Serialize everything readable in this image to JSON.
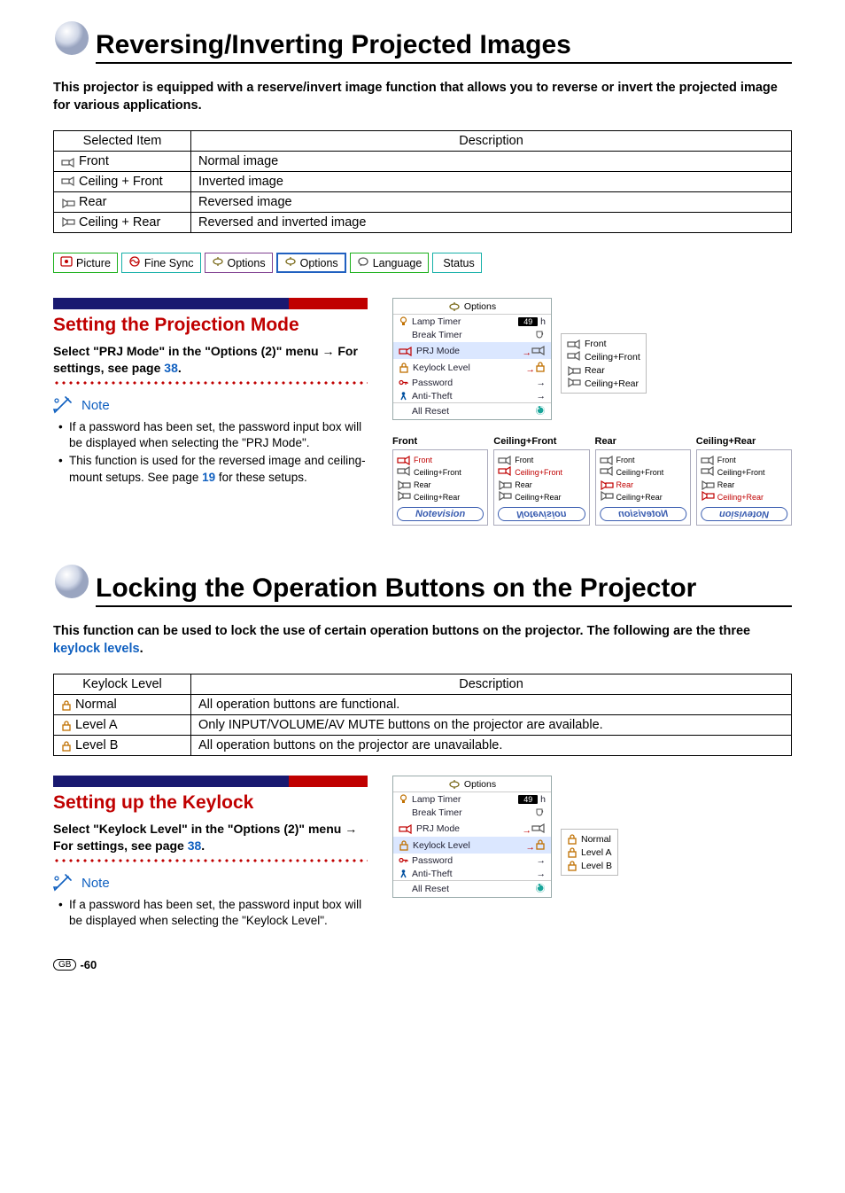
{
  "section1": {
    "title": "Reversing/Inverting Projected Images",
    "intro": "This projector is equipped with a reserve/invert image function that allows you to reverse or invert the projected image for various applications.",
    "table": {
      "headers": [
        "Selected Item",
        "Description"
      ],
      "rows": [
        {
          "item": "Front",
          "desc": "Normal image",
          "iconColor": "#555"
        },
        {
          "item": "Ceiling + Front",
          "desc": "Inverted image",
          "iconColor": "#555"
        },
        {
          "item": "Rear",
          "desc": "Reversed image",
          "iconColor": "#555"
        },
        {
          "item": "Ceiling + Rear",
          "desc": "Reversed and inverted image",
          "iconColor": "#555"
        }
      ],
      "col1_width": 155
    }
  },
  "menuTabs": [
    {
      "label": "Picture",
      "border": "#1bb01b",
      "iconColor": "#c00000"
    },
    {
      "label": "Fine Sync",
      "border": "#16b0a8",
      "iconColor": "#c00000"
    },
    {
      "label": "Options",
      "border": "#804090",
      "iconColor": "#7a6a1a"
    },
    {
      "label": "Options",
      "border": "#2060c0",
      "iconColor": "#7a6a1a",
      "thick": true
    },
    {
      "label": "Language",
      "border": "#1bb01b",
      "iconColor": "#555"
    },
    {
      "label": "Status",
      "border": "#16b0a8",
      "iconColor": null
    }
  ],
  "sub1": {
    "title": "Setting the Projection Mode",
    "leadA": "Select \"PRJ Mode\" in the \"Options (2)\" menu ",
    "leadArrow": "→",
    "leadB": " For settings, see page ",
    "pageRef": "38",
    "leadC": ".",
    "noteLabel": "Note",
    "notes": [
      {
        "text": "If a password has been set, the password input box will be displayed when selecting the \"PRJ Mode\"."
      },
      {
        "text": "This function is used for the reversed image and ceiling-mount setups. See page ",
        "page": "19",
        "tail": " for these setups."
      }
    ]
  },
  "optionsPanel": {
    "title": "Options",
    "rows": [
      {
        "icon": "lamp",
        "label": "Lamp Timer",
        "val": "49",
        "unit": "h",
        "color": "#c07000"
      },
      {
        "icon": "",
        "label": "Break Timer",
        "rtype": "cup"
      },
      {
        "icon": "prj",
        "label": "PRJ Mode",
        "rtype": "prjarrow",
        "hiA": true,
        "color": "#c00000"
      },
      {
        "icon": "lock",
        "label": "Keylock Level",
        "rtype": "lockarrow",
        "hiB": true,
        "color": "#c07000"
      },
      {
        "icon": "key",
        "label": "Password",
        "rtype": "arrow",
        "color": "#c00000"
      },
      {
        "icon": "thief",
        "label": "Anti-Theft",
        "rtype": "arrow",
        "color": "#0050a0"
      },
      {
        "icon": "",
        "label": "All Reset",
        "rtype": "reset",
        "last": true
      }
    ]
  },
  "prjPopup": [
    "Front",
    "Ceiling+Front",
    "Rear",
    "Ceiling+Rear"
  ],
  "modeGrid": [
    {
      "h": "Front",
      "sel": 0,
      "cls": ""
    },
    {
      "h": "Ceiling+Front",
      "sel": 1,
      "cls": "ud"
    },
    {
      "h": "Rear",
      "sel": 2,
      "cls": "flip"
    },
    {
      "h": "Ceiling+Rear",
      "sel": 3,
      "cls": "ud flip"
    }
  ],
  "modeItems": [
    "Front",
    "Ceiling+Front",
    "Rear",
    "Ceiling+Rear"
  ],
  "nvText": "Notevision",
  "section2": {
    "title": "Locking the Operation Buttons on the Projector",
    "introA": "This function can be used to lock the use of certain operation buttons on the projector. The following are the three ",
    "link": "keylock levels",
    "introB": ".",
    "table": {
      "headers": [
        "Keylock Level",
        "Description"
      ],
      "rows": [
        {
          "item": "Normal",
          "desc": "All operation buttons are functional."
        },
        {
          "item": "Level A",
          "desc": "Only INPUT/VOLUME/AV MUTE buttons on the projector are available."
        },
        {
          "item": "Level B",
          "desc": "All operation buttons on the projector are unavailable."
        }
      ],
      "col1_width": 155
    }
  },
  "sub2": {
    "title": "Setting up the Keylock",
    "leadA": "Select \"Keylock Level\" in the \"Options (2)\" menu ",
    "leadArrow": "→",
    "leadB": " For settings, see page ",
    "pageRef": "38",
    "leadC": ".",
    "noteLabel": "Note",
    "notes": [
      {
        "text": "If a password has been set, the password input box will be displayed when selecting the \"Keylock Level\"."
      }
    ]
  },
  "keylockPopup": [
    "Normal",
    "Level A",
    "Level B"
  ],
  "pageNumber": "-60",
  "gbLabel": "GB",
  "colors": {
    "red": "#c00000",
    "navy": "#191970",
    "link": "#1060c0"
  }
}
